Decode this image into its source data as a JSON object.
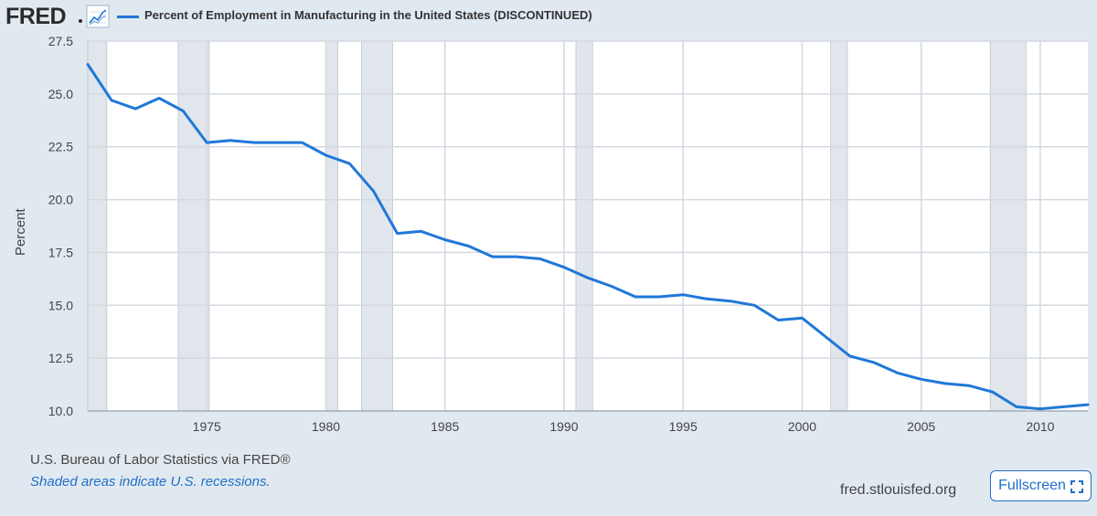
{
  "header": {
    "logo_text": "FRED",
    "series_title": "Percent of Employment in Manufacturing in the United States (DISCONTINUED)",
    "series_color": "#1f78d8"
  },
  "footer": {
    "source": "U.S. Bureau of Labor Statistics via FRED®",
    "recession_note": "Shaded areas indicate U.S. recessions.",
    "site": "fred.stlouisfed.org",
    "fullscreen_label": "Fullscreen"
  },
  "colors": {
    "page_background": "#e1e9f0",
    "plot_background": "#ffffff",
    "recession_shade": "#e1e6ec",
    "gridline": "#d3d9e0",
    "line": "#1f78d8",
    "link": "#1f6fc9"
  },
  "chart_data": {
    "type": "line",
    "title": "Percent of Employment in Manufacturing in the United States (DISCONTINUED)",
    "xlabel": "",
    "ylabel": "Percent",
    "ylim": [
      10.0,
      27.5
    ],
    "xlim": [
      1970,
      2012
    ],
    "y_ticks": [
      "10.0",
      "12.5",
      "15.0",
      "17.5",
      "20.0",
      "22.5",
      "25.0",
      "27.5"
    ],
    "x_ticks": [
      "1975",
      "1980",
      "1985",
      "1990",
      "1995",
      "2000",
      "2005",
      "2010"
    ],
    "grid": true,
    "legend_position": "top-left",
    "recessions": [
      [
        1970.0,
        1970.8
      ],
      [
        1973.8,
        1975.1
      ],
      [
        1980.0,
        1980.5
      ],
      [
        1981.5,
        1982.8
      ],
      [
        1990.5,
        1991.2
      ],
      [
        2001.2,
        2001.9
      ],
      [
        2007.9,
        2009.4
      ]
    ],
    "series": [
      {
        "name": "Percent of Employment in Manufacturing in the United States (DISCONTINUED)",
        "x": [
          1970,
          1971,
          1972,
          1973,
          1974,
          1975,
          1976,
          1977,
          1978,
          1979,
          1980,
          1981,
          1982,
          1983,
          1984,
          1985,
          1986,
          1987,
          1988,
          1989,
          1990,
          1991,
          1992,
          1993,
          1994,
          1995,
          1996,
          1997,
          1998,
          1999,
          2000,
          2001,
          2002,
          2003,
          2004,
          2005,
          2006,
          2007,
          2008,
          2009,
          2010,
          2011,
          2012
        ],
        "values": [
          26.4,
          24.7,
          24.3,
          24.8,
          24.2,
          22.7,
          22.8,
          22.7,
          22.7,
          22.7,
          22.1,
          21.7,
          20.4,
          18.4,
          18.5,
          18.1,
          17.8,
          17.3,
          17.3,
          17.2,
          16.8,
          16.3,
          15.9,
          15.4,
          15.4,
          15.5,
          15.3,
          15.2,
          15.0,
          14.3,
          14.4,
          13.5,
          12.6,
          12.3,
          11.8,
          11.5,
          11.3,
          11.2,
          10.9,
          10.2,
          10.1,
          10.2,
          10.3
        ]
      }
    ]
  }
}
